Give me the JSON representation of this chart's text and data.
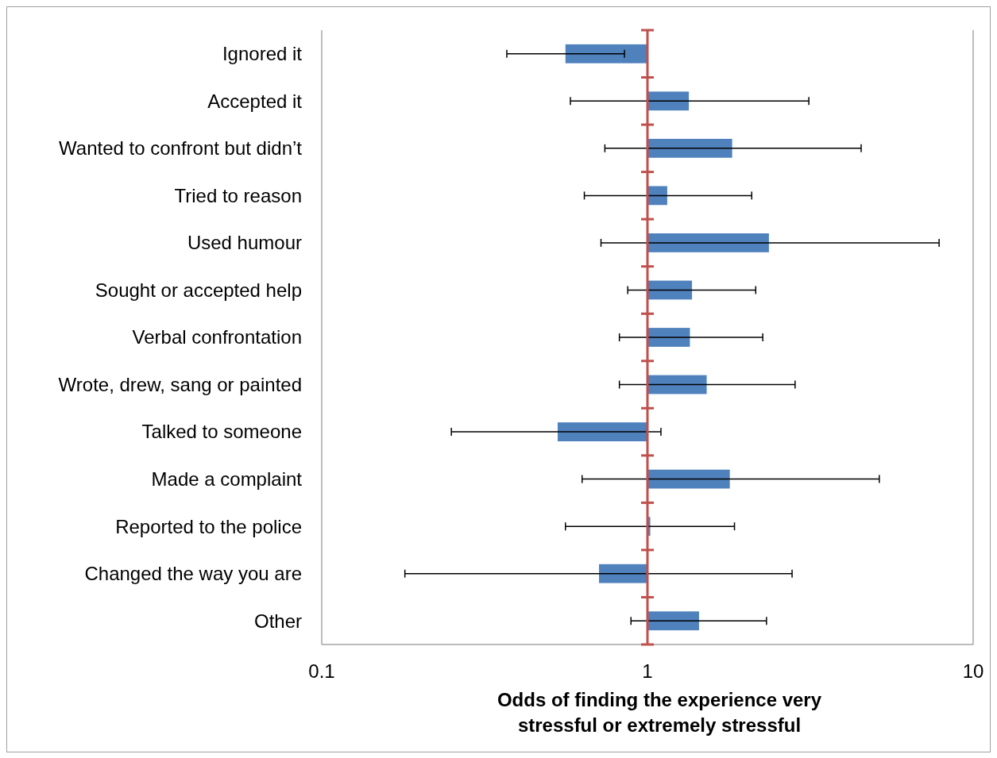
{
  "chart_data": {
    "type": "bar",
    "orientation": "horizontal",
    "log": "x",
    "xlabel": "Odds of finding the experience very stressful or extremely stressful",
    "categories": [
      "Ignored it",
      "Accepted it",
      "Wanted to confront but didn’t",
      "Tried to reason",
      "Used humour",
      "Sought or accepted help",
      "Verbal confrontation",
      "Wrote, drew, sang or painted",
      "Talked to someone",
      "Made a complaint",
      "Reported to the police",
      "Changed the way you are",
      "Other"
    ],
    "base": [
      1,
      1,
      1,
      1,
      1,
      1,
      1,
      1,
      1,
      1,
      1,
      1,
      1
    ],
    "values": [
      -0.44,
      0.34,
      0.82,
      0.15,
      1.36,
      0.37,
      0.35,
      0.52,
      -0.47,
      0.79,
      0.02,
      -0.29,
      0.44
    ],
    "errors": [
      [
        0.37,
        0.85
      ],
      [
        0.58,
        3.13
      ],
      [
        0.74,
        4.53
      ],
      [
        0.64,
        2.09
      ],
      [
        0.72,
        7.86
      ],
      [
        0.87,
        2.15
      ],
      [
        0.82,
        2.26
      ],
      [
        0.82,
        2.84
      ],
      [
        0.25,
        1.1
      ],
      [
        0.63,
        5.15
      ],
      [
        0.56,
        1.85
      ],
      [
        0.18,
        2.78
      ],
      [
        0.89,
        2.32
      ]
    ],
    "color": "#4f81bd",
    "xlim": [
      0.1,
      10
    ],
    "xticks": [
      0.1,
      1,
      10
    ],
    "ref_lines": [
      {
        "axis": "x",
        "value": 1,
        "color": "#c0504d"
      }
    ]
  }
}
